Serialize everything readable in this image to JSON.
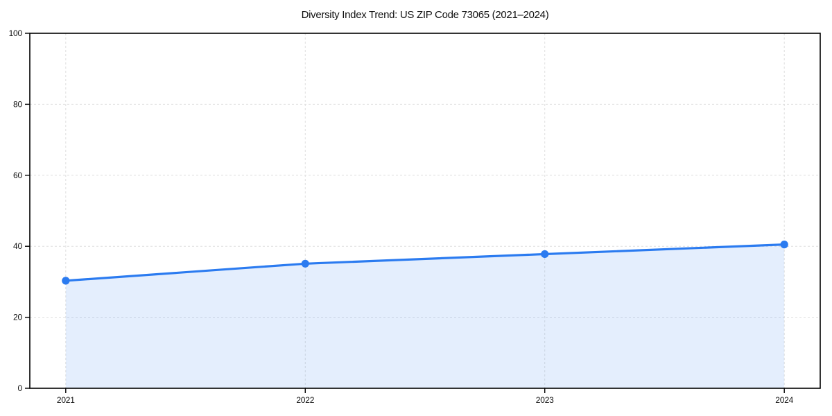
{
  "chart_data": {
    "type": "area",
    "title": "Diversity Index Trend: US ZIP Code 73065 (2021–2024)",
    "categories": [
      "2021",
      "2022",
      "2023",
      "2024"
    ],
    "values": [
      30.3,
      35.1,
      37.8,
      40.5
    ],
    "xlabel": "",
    "ylabel": "",
    "ylim": [
      0,
      100
    ],
    "yticks": [
      0,
      20,
      40,
      60,
      80,
      100
    ],
    "grid": true,
    "grid_style": "dashed",
    "legend": "none",
    "marker": "circle",
    "colors": {
      "line": "#2b7bf0",
      "fill": "rgba(43, 123, 240, 0.13)",
      "grid": "#dedede",
      "axis": "#000000",
      "tick_label": "#111111",
      "background": "#ffffff"
    }
  }
}
